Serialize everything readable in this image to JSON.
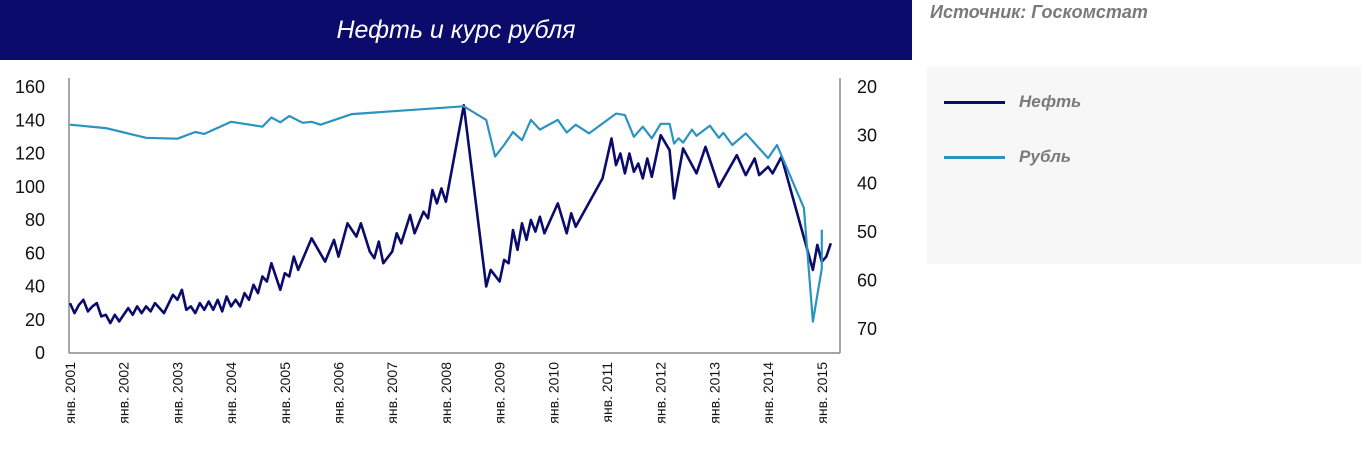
{
  "chart_data": {
    "type": "line",
    "title": "Нефть и курс рубля",
    "source": "Источник: Госкомстат",
    "x_ticks": [
      "янв. 2001",
      "янв. 2002",
      "янв. 2003",
      "янв. 2004",
      "янв. 2005",
      "янв. 2006",
      "янв. 2007",
      "янв. 2008",
      "янв. 2009",
      "янв. 2010",
      "янв. 2011",
      "янв. 2012",
      "янв. 2013",
      "янв. 2014",
      "янв. 2015"
    ],
    "y_left": {
      "range": [
        0,
        160
      ],
      "ticks": [
        "0",
        "20",
        "40",
        "60",
        "80",
        "100",
        "120",
        "140",
        "160"
      ]
    },
    "y_right": {
      "range": [
        75,
        20
      ],
      "inverted": true,
      "ticks": [
        "20",
        "30",
        "40",
        "50",
        "60",
        "70"
      ]
    },
    "grid": false,
    "legend_placement": "right",
    "series": [
      {
        "name": "Нефть",
        "axis": "left",
        "color": "#0b0b6b",
        "points": [
          [
            "2001-01",
            30
          ],
          [
            "2001-02",
            24
          ],
          [
            "2001-03",
            29
          ],
          [
            "2001-04",
            32
          ],
          [
            "2001-05",
            25
          ],
          [
            "2001-06",
            28
          ],
          [
            "2001-07",
            30
          ],
          [
            "2001-08",
            22
          ],
          [
            "2001-09",
            23
          ],
          [
            "2001-10",
            18
          ],
          [
            "2001-11",
            23
          ],
          [
            "2001-12",
            19
          ],
          [
            "2002-02",
            27
          ],
          [
            "2002-03",
            23
          ],
          [
            "2002-04",
            28
          ],
          [
            "2002-05",
            24
          ],
          [
            "2002-06",
            28
          ],
          [
            "2002-07",
            25
          ],
          [
            "2002-08",
            30
          ],
          [
            "2002-10",
            24
          ],
          [
            "2002-12",
            35
          ],
          [
            "2003-01",
            32
          ],
          [
            "2003-02",
            38
          ],
          [
            "2003-03",
            26
          ],
          [
            "2003-04",
            28
          ],
          [
            "2003-05",
            24
          ],
          [
            "2003-06",
            30
          ],
          [
            "2003-07",
            26
          ],
          [
            "2003-08",
            31
          ],
          [
            "2003-09",
            26
          ],
          [
            "2003-10",
            32
          ],
          [
            "2003-11",
            25
          ],
          [
            "2003-12",
            34
          ],
          [
            "2004-01",
            28
          ],
          [
            "2004-02",
            32
          ],
          [
            "2004-03",
            28
          ],
          [
            "2004-04",
            36
          ],
          [
            "2004-05",
            32
          ],
          [
            "2004-06",
            41
          ],
          [
            "2004-07",
            36
          ],
          [
            "2004-08",
            46
          ],
          [
            "2004-09",
            43
          ],
          [
            "2004-10",
            54
          ],
          [
            "2004-12",
            38
          ],
          [
            "2005-01",
            48
          ],
          [
            "2005-02",
            46
          ],
          [
            "2005-03",
            58
          ],
          [
            "2005-04",
            50
          ],
          [
            "2005-07",
            69
          ],
          [
            "2005-10",
            55
          ],
          [
            "2005-12",
            68
          ],
          [
            "2006-01",
            58
          ],
          [
            "2006-03",
            78
          ],
          [
            "2006-05",
            70
          ],
          [
            "2006-06",
            78
          ],
          [
            "2006-08",
            61
          ],
          [
            "2006-09",
            57
          ],
          [
            "2006-10",
            67
          ],
          [
            "2006-11",
            54
          ],
          [
            "2007-01",
            61
          ],
          [
            "2007-02",
            72
          ],
          [
            "2007-03",
            66
          ],
          [
            "2007-05",
            83
          ],
          [
            "2007-06",
            72
          ],
          [
            "2007-08",
            85
          ],
          [
            "2007-09",
            81
          ],
          [
            "2007-10",
            98
          ],
          [
            "2007-11",
            90
          ],
          [
            "2007-12",
            99
          ],
          [
            "2008-01",
            91
          ],
          [
            "2008-05",
            149
          ],
          [
            "2008-10",
            40
          ],
          [
            "2008-11",
            50
          ],
          [
            "2009-01",
            43
          ],
          [
            "2009-02",
            56
          ],
          [
            "2009-03",
            54
          ],
          [
            "2009-04",
            74
          ],
          [
            "2009-05",
            62
          ],
          [
            "2009-06",
            78
          ],
          [
            "2009-07",
            68
          ],
          [
            "2009-08",
            80
          ],
          [
            "2009-09",
            73
          ],
          [
            "2009-10",
            82
          ],
          [
            "2009-11",
            72
          ],
          [
            "2010-02",
            90
          ],
          [
            "2010-04",
            72
          ],
          [
            "2010-05",
            84
          ],
          [
            "2010-06",
            76
          ],
          [
            "2010-12",
            105
          ],
          [
            "2011-02",
            129
          ],
          [
            "2011-03",
            113
          ],
          [
            "2011-04",
            120
          ],
          [
            "2011-05",
            108
          ],
          [
            "2011-06",
            120
          ],
          [
            "2011-07",
            109
          ],
          [
            "2011-08",
            114
          ],
          [
            "2011-09",
            105
          ],
          [
            "2011-10",
            117
          ],
          [
            "2011-11",
            106
          ],
          [
            "2012-01",
            131
          ],
          [
            "2012-03",
            122
          ],
          [
            "2012-04",
            93
          ],
          [
            "2012-06",
            123
          ],
          [
            "2012-09",
            108
          ],
          [
            "2012-11",
            124
          ],
          [
            "2013-02",
            100
          ],
          [
            "2013-06",
            119
          ],
          [
            "2013-08",
            107
          ],
          [
            "2013-10",
            117
          ],
          [
            "2013-11",
            107
          ],
          [
            "2014-01",
            112
          ],
          [
            "2014-02",
            108
          ],
          [
            "2014-04",
            118
          ],
          [
            "2014-11",
            50
          ],
          [
            "2014-12",
            65
          ],
          [
            "2015-01",
            55
          ],
          [
            "2015-02",
            58
          ],
          [
            "2015-03",
            66
          ]
        ]
      },
      {
        "name": "Рубль",
        "axis": "right",
        "color": "#2a93c0",
        "points": [
          [
            "2001-01",
            27.8
          ],
          [
            "2001-09",
            28.5
          ],
          [
            "2002-06",
            30.5
          ],
          [
            "2003-01",
            30.7
          ],
          [
            "2003-05",
            29.3
          ],
          [
            "2003-07",
            29.7
          ],
          [
            "2004-01",
            27.2
          ],
          [
            "2004-08",
            28.2
          ],
          [
            "2004-10",
            26.3
          ],
          [
            "2004-12",
            27.3
          ],
          [
            "2005-02",
            26
          ],
          [
            "2005-05",
            27.4
          ],
          [
            "2005-07",
            27.2
          ],
          [
            "2005-09",
            27.8
          ],
          [
            "2006-04",
            25.6
          ],
          [
            "2008-05",
            24
          ],
          [
            "2008-10",
            26.8
          ],
          [
            "2008-12",
            34.4
          ],
          [
            "2009-02",
            32
          ],
          [
            "2009-04",
            29.3
          ],
          [
            "2009-06",
            31
          ],
          [
            "2009-08",
            26.8
          ],
          [
            "2009-10",
            28.8
          ],
          [
            "2010-02",
            26.8
          ],
          [
            "2010-04",
            29.4
          ],
          [
            "2010-06",
            27.8
          ],
          [
            "2010-09",
            29.6
          ],
          [
            "2011-03",
            25.5
          ],
          [
            "2011-05",
            25.8
          ],
          [
            "2011-07",
            30.3
          ],
          [
            "2011-09",
            28.2
          ],
          [
            "2011-11",
            30.6
          ],
          [
            "2012-01",
            27.6
          ],
          [
            "2012-03",
            27.6
          ],
          [
            "2012-04",
            31.7
          ],
          [
            "2012-05",
            30.6
          ],
          [
            "2012-06",
            31.5
          ],
          [
            "2012-08",
            28.8
          ],
          [
            "2012-09",
            30.1
          ],
          [
            "2012-12",
            28
          ],
          [
            "2013-02",
            30.5
          ],
          [
            "2013-03",
            29.5
          ],
          [
            "2013-05",
            32
          ],
          [
            "2013-08",
            29.6
          ],
          [
            "2014-01",
            34.7
          ],
          [
            "2014-03",
            32
          ],
          [
            "2014-09",
            45
          ],
          [
            "2014-11",
            68.5
          ],
          [
            "2015-01",
            57.5
          ],
          [
            "2015-01",
            49.5
          ]
        ]
      }
    ]
  }
}
